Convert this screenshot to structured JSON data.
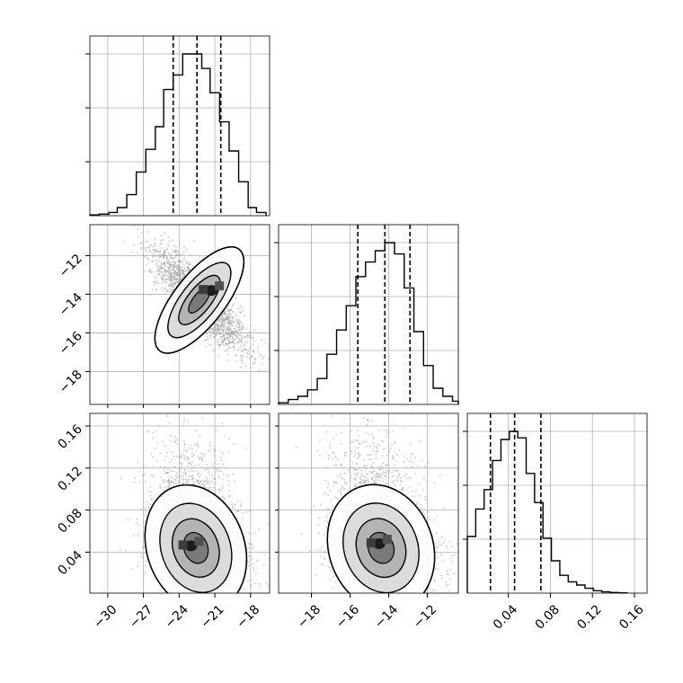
{
  "chart_data": {
    "type": "corner",
    "grid": true,
    "variables": [
      {
        "name": "",
        "range": [
          -31.5,
          -16.4
        ],
        "ticks": [
          -30,
          -27,
          -24,
          -21,
          -18
        ],
        "tick_labels": [
          "−30",
          "−27",
          "−24",
          "−21",
          "−18"
        ]
      },
      {
        "name": "",
        "range": [
          -19.7,
          -10.4
        ],
        "ticks": [
          -18,
          -16,
          -14,
          -12
        ],
        "tick_labels": [
          "−18",
          "−16",
          "−14",
          "−12"
        ]
      },
      {
        "name": "",
        "range": [
          0.001,
          0.172
        ],
        "ticks": [
          0.04,
          0.08,
          0.12,
          0.16
        ],
        "tick_labels": [
          "0.04",
          "0.08",
          "0.12",
          "0.16"
        ]
      }
    ],
    "histograms": [
      {
        "variable": 0,
        "bin_edges": [
          -31.5,
          -30.7,
          -29.9,
          -29.2,
          -28.4,
          -27.6,
          -26.8,
          -26.0,
          -25.3,
          -24.5,
          -23.7,
          -22.9,
          -22.1,
          -21.4,
          -20.6,
          -19.8,
          -19.0,
          -18.2,
          -17.5,
          -16.7
        ],
        "counts": [
          0.005,
          0.01,
          0.02,
          0.05,
          0.13,
          0.27,
          0.41,
          0.55,
          0.78,
          0.87,
          1.0,
          1.0,
          0.91,
          0.76,
          0.58,
          0.4,
          0.21,
          0.05,
          0.02
        ],
        "quantiles": [
          -24.5,
          -22.5,
          -20.5
        ],
        "ytick_fractions": [
          0.3,
          0.6,
          0.9
        ]
      },
      {
        "variable": 1,
        "bin_edges": [
          -19.7,
          -19.2,
          -18.7,
          -18.2,
          -17.7,
          -17.2,
          -16.7,
          -16.2,
          -15.7,
          -15.2,
          -14.7,
          -14.2,
          -13.7,
          -13.2,
          -12.7,
          -12.2,
          -11.7,
          -11.2,
          -10.7,
          -10.4
        ],
        "counts": [
          0.01,
          0.03,
          0.05,
          0.09,
          0.16,
          0.31,
          0.46,
          0.61,
          0.79,
          0.88,
          0.95,
          1.0,
          0.93,
          0.72,
          0.45,
          0.24,
          0.1,
          0.05,
          0.02
        ],
        "quantiles": [
          -15.6,
          -14.2,
          -12.9
        ],
        "ytick_fractions": [
          0.3,
          0.6,
          0.9
        ]
      },
      {
        "variable": 2,
        "bin_edges": [
          0.001,
          0.009,
          0.017,
          0.025,
          0.033,
          0.041,
          0.049,
          0.057,
          0.065,
          0.073,
          0.081,
          0.089,
          0.097,
          0.105,
          0.113,
          0.121,
          0.129,
          0.137,
          0.145,
          0.153
        ],
        "counts": [
          0.35,
          0.52,
          0.64,
          0.82,
          0.95,
          1.0,
          0.96,
          0.74,
          0.56,
          0.34,
          0.2,
          0.11,
          0.07,
          0.05,
          0.03,
          0.015,
          0.008,
          0.004,
          0.002
        ],
        "quantiles": [
          0.023,
          0.046,
          0.071
        ],
        "ytick_fractions": [
          0.3,
          0.6,
          0.9
        ]
      }
    ],
    "scatter_panels": [
      {
        "x_var": 0,
        "y_var": 1,
        "center": [
          -22.3,
          -14.3
        ],
        "sd": [
          1.9,
          1.25
        ],
        "correlation": 0.85,
        "peak": [
          -21.3,
          -13.8
        ]
      },
      {
        "x_var": 0,
        "y_var": 2,
        "center": [
          -22.6,
          0.05
        ],
        "sd": [
          1.9,
          0.024
        ],
        "correlation": 0.25,
        "peak": [
          -23.0,
          0.046
        ]
      },
      {
        "x_var": 1,
        "y_var": 2,
        "center": [
          -14.4,
          0.05
        ],
        "sd": [
          1.25,
          0.024
        ],
        "correlation": 0.3,
        "peak": [
          -14.5,
          0.048
        ]
      }
    ]
  }
}
